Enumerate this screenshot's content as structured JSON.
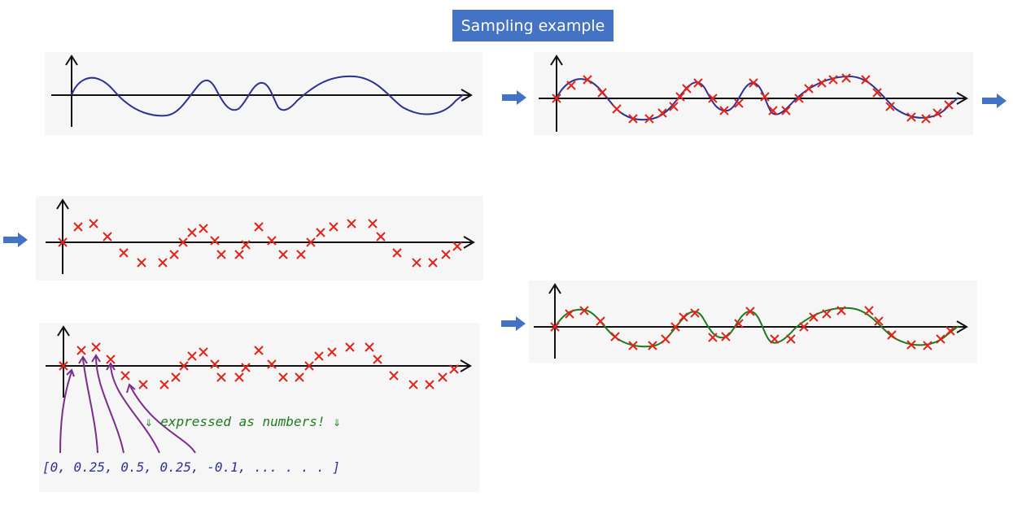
{
  "title": "Sampling example",
  "colors": {
    "title_bg": "#4472c4",
    "signal": "#2e3192",
    "samples": "#e2231a",
    "reconstructed": "#1e7a1e",
    "annotation": "#7b2d8b",
    "note": "#1e7a1e",
    "arrow": "#4472c4"
  },
  "panels": [
    {
      "id": "continuous-signal",
      "shows": [
        "signal"
      ]
    },
    {
      "id": "sampled-signal",
      "shows": [
        "signal",
        "samples"
      ]
    },
    {
      "id": "samples-only",
      "shows": [
        "samples"
      ]
    },
    {
      "id": "samples-as-numbers",
      "shows": [
        "samples",
        "annotations"
      ]
    },
    {
      "id": "reconstructed-signal",
      "shows": [
        "reconstructed",
        "samples"
      ]
    }
  ],
  "annotation": {
    "note": "⇓ expressed as numbers! ⇓",
    "values_text": "[0, 0.25, 0.5, 0.25, -0.1, ... . . . ]"
  }
}
